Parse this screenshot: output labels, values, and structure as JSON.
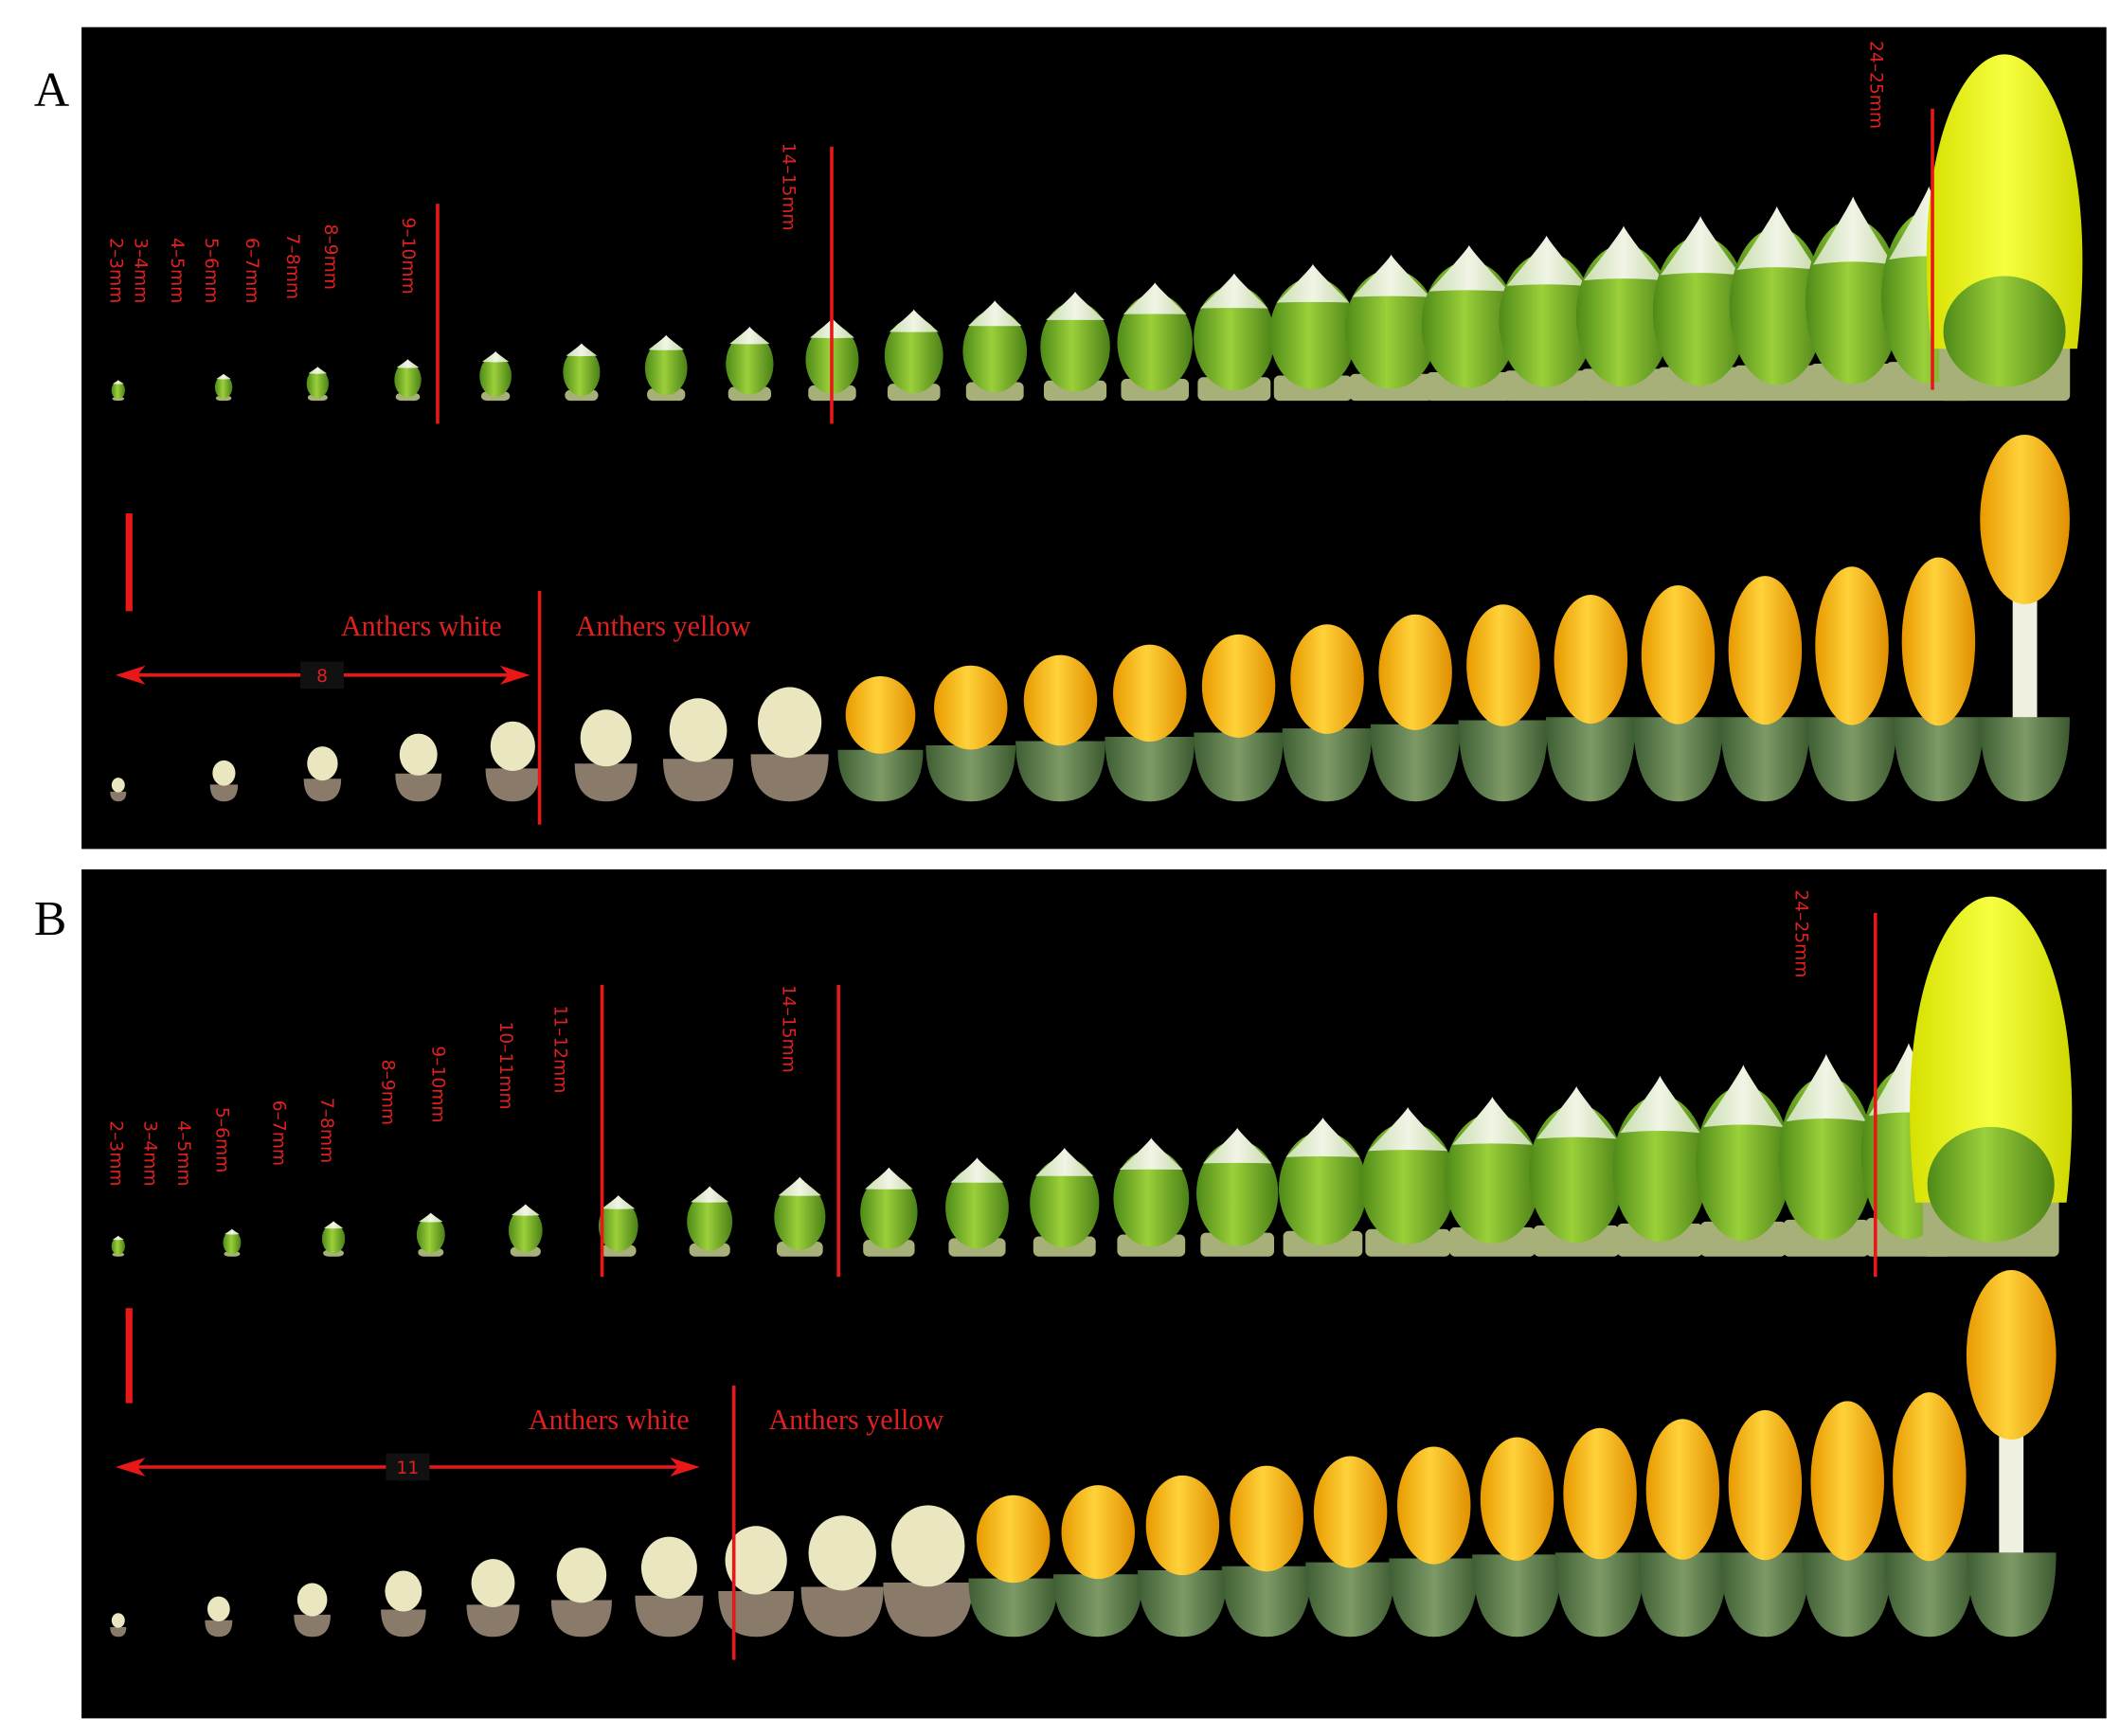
{
  "panels": [
    {
      "label": "A",
      "size_labels": [
        "2–3mm",
        "3–4mm",
        "4–5mm",
        "5–6mm",
        "6–7mm",
        "7–8mm",
        "8–9mm",
        "9–10mm",
        "14–15mm",
        "24–25mm"
      ],
      "anthers_white": "Anthers white",
      "anthers_yellow": "Anthers yellow",
      "count": 8
    },
    {
      "label": "B",
      "size_labels": [
        "2–3mm",
        "3–4mm",
        "4–5mm",
        "5–6mm",
        "6–7mm",
        "7–8mm",
        "8–9mm",
        "9–10mm",
        "10–11mm",
        "11–12mm",
        "14–15mm",
        "24–25mm"
      ],
      "anthers_white": "Anthers white",
      "anthers_yellow": "Anthers yellow",
      "count": 11
    }
  ]
}
